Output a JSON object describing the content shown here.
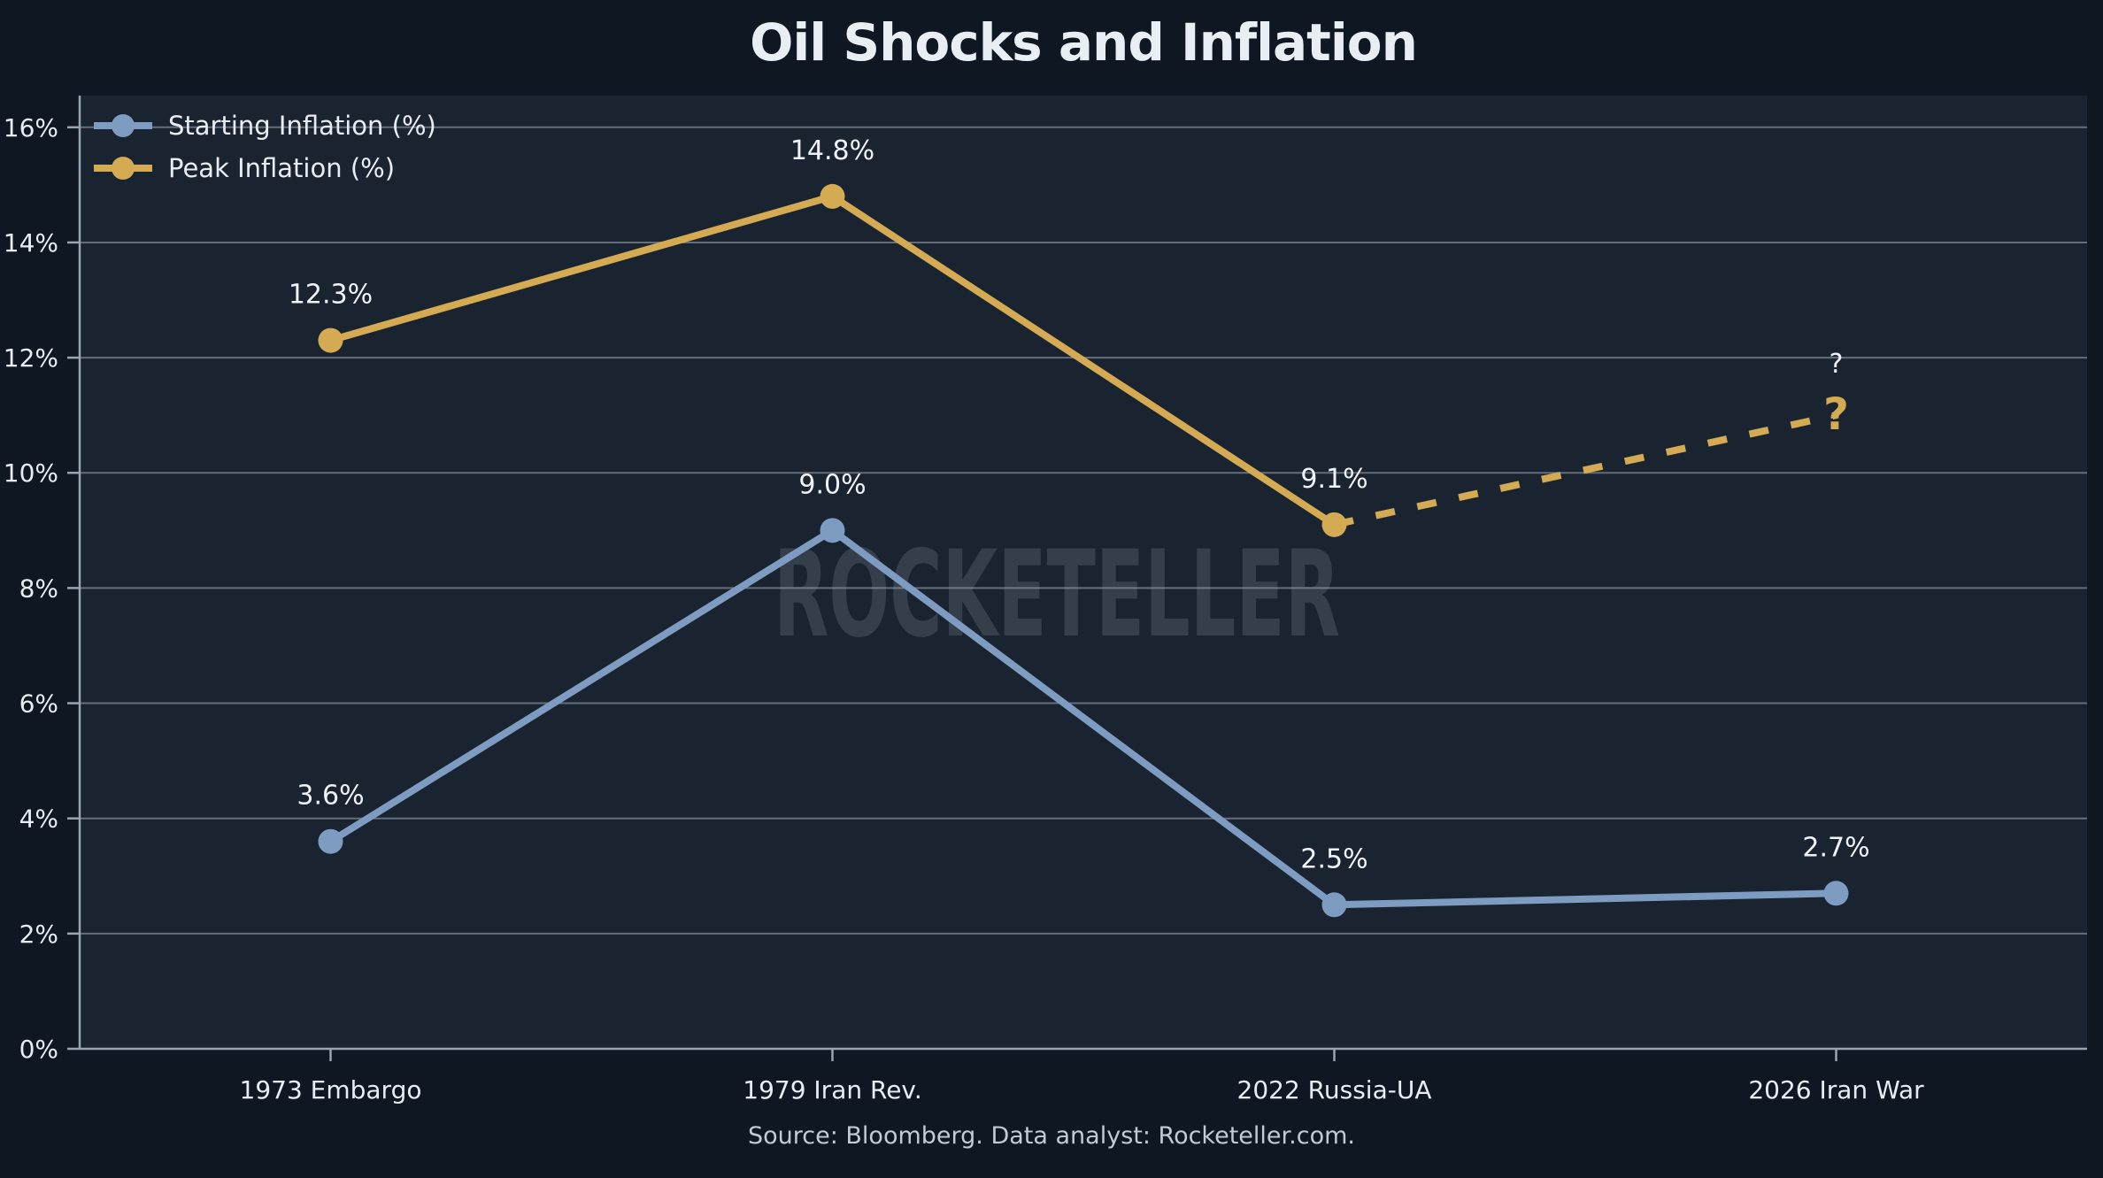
{
  "chart_data": {
    "type": "line",
    "title": "Oil Shocks and Inflation",
    "footer": "Source: Bloomberg.  Data analyst: Rocketeller.com.",
    "watermark": "ROCKETELLER",
    "categories": [
      "1973 Embargo",
      "1979 Iran Rev.",
      "2022 Russia-UA",
      "2026 Iran War"
    ],
    "yticks": [
      {
        "value": 0,
        "label": "0%"
      },
      {
        "value": 2,
        "label": "2%"
      },
      {
        "value": 4,
        "label": "4%"
      },
      {
        "value": 6,
        "label": "6%"
      },
      {
        "value": 8,
        "label": "8%"
      },
      {
        "value": 10,
        "label": "10%"
      },
      {
        "value": 12,
        "label": "12%"
      },
      {
        "value": 14,
        "label": "14%"
      },
      {
        "value": 16,
        "label": "16%"
      }
    ],
    "ylim": [
      0,
      16.55
    ],
    "grid": "horizontal",
    "legend_position": "top-left",
    "series": [
      {
        "name": "Starting Inflation (%)",
        "color": "#7E9CC1",
        "style": "solid",
        "values": [
          3.6,
          9.0,
          2.5,
          2.7
        ],
        "labels": [
          "3.6%",
          "9.0%",
          "2.5%",
          "2.7%"
        ]
      },
      {
        "name": "Peak Inflation (%)",
        "color": "#D4AA53",
        "style": "solid",
        "values": [
          12.3,
          14.8,
          9.1,
          null
        ],
        "labels": [
          "12.3%",
          "14.8%",
          "9.1%",
          ""
        ],
        "projection": {
          "from_index": 2,
          "to_index": 3,
          "value": 11.0,
          "style": "dashed",
          "end_marker": "?",
          "end_label": "?"
        }
      }
    ],
    "colors": {
      "background": "#0E1722",
      "plot_background": "#1A2430",
      "gridline": "rgba(174,184,198,0.5)",
      "spine": "#9AA5B1",
      "tick_label": "#E8EDF3",
      "data_label": "#EFF3F7",
      "title": "#E9EEF4",
      "footer": "#C2CBD5",
      "watermark": "rgba(220,228,238,0.14)"
    }
  }
}
